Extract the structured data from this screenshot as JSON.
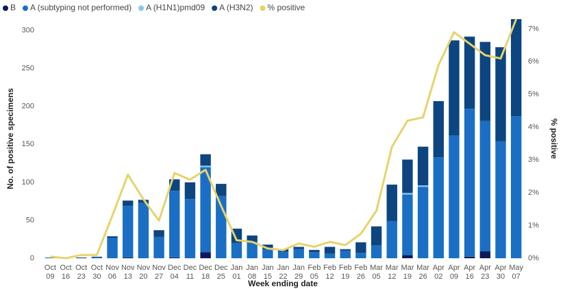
{
  "chart_data": {
    "type": "bar",
    "x_label": "Week ending date",
    "y_label": "No. of positive specimens",
    "y2_label": "% positive",
    "stacked": true,
    "legend": "top-left",
    "categories": [
      "Oct 09",
      "Oct 16",
      "Oct 23",
      "Oct 30",
      "Nov 06",
      "Nov 13",
      "Nov 20",
      "Nov 27",
      "Dec 04",
      "Dec 11",
      "Dec 18",
      "Dec 25",
      "Jan 01",
      "Jan 08",
      "Jan 15",
      "Jan 22",
      "Jan 29",
      "Feb 05",
      "Feb 12",
      "Feb 19",
      "Feb 26",
      "Mar 05",
      "Mar 12",
      "Mar 19",
      "Mar 26",
      "Apr 02",
      "Apr 09",
      "Apr 16",
      "Apr 23",
      "Apr 30",
      "May 07"
    ],
    "series": [
      {
        "name": "B",
        "color": "#0c1a5a",
        "values": [
          0,
          0,
          0,
          0,
          0,
          1,
          0,
          0,
          1,
          0,
          8,
          0,
          0,
          0,
          0,
          0,
          0,
          0,
          0,
          0,
          0,
          0,
          0,
          4,
          0,
          0,
          0,
          2,
          9,
          0,
          0
        ]
      },
      {
        "name": "A (subtyping not performed)",
        "color": "#1a6fc4",
        "values": [
          1,
          0,
          0,
          1,
          27,
          68,
          73,
          28,
          88,
          78,
          112,
          82,
          20,
          22,
          12,
          9,
          12,
          8,
          6,
          10,
          7,
          17,
          49,
          80,
          94,
          133,
          162,
          195,
          172,
          154,
          187
        ]
      },
      {
        "name": "A (H1N1)pmd09",
        "color": "#8ac6f0",
        "values": [
          0,
          0,
          0,
          0,
          0,
          0,
          0,
          0,
          0,
          0,
          2,
          0,
          0,
          0,
          0,
          0,
          0,
          0,
          0,
          0,
          0,
          0,
          0,
          2,
          2,
          0,
          0,
          0,
          0,
          0,
          0
        ]
      },
      {
        "name": "A (H3N2)",
        "color": "#0d4580",
        "values": [
          0,
          0,
          1,
          1,
          2,
          7,
          4,
          9,
          15,
          22,
          15,
          16,
          19,
          8,
          6,
          3,
          3,
          3,
          9,
          2,
          14,
          25,
          48,
          44,
          51,
          74,
          125,
          95,
          104,
          124,
          128
        ]
      },
      {
        "name": "% positive",
        "color": "#e6d36a",
        "type": "line",
        "axis": "y2",
        "values": [
          0.05,
          0.0,
          0.1,
          0.1,
          1.3,
          2.55,
          1.8,
          1.15,
          2.6,
          2.4,
          2.7,
          1.6,
          0.55,
          0.5,
          0.3,
          0.25,
          0.45,
          0.35,
          0.5,
          0.4,
          0.75,
          1.45,
          3.4,
          4.2,
          4.3,
          5.9,
          6.9,
          6.55,
          6.2,
          6.1,
          7.3
        ]
      }
    ],
    "ylim": [
      0,
      315
    ],
    "yticks": [
      0,
      50,
      100,
      150,
      200,
      250,
      300
    ],
    "y2lim": [
      0,
      7.3
    ],
    "y2ticks": [
      {
        "value": 0,
        "label": "0%"
      },
      {
        "value": 1,
        "label": "1%"
      },
      {
        "value": 2,
        "label": "2%"
      },
      {
        "value": 3,
        "label": "3%"
      },
      {
        "value": 4,
        "label": "4%"
      },
      {
        "value": 5,
        "label": "5%"
      },
      {
        "value": 6,
        "label": "6%"
      },
      {
        "value": 7,
        "label": "7%"
      }
    ],
    "grid": false
  }
}
